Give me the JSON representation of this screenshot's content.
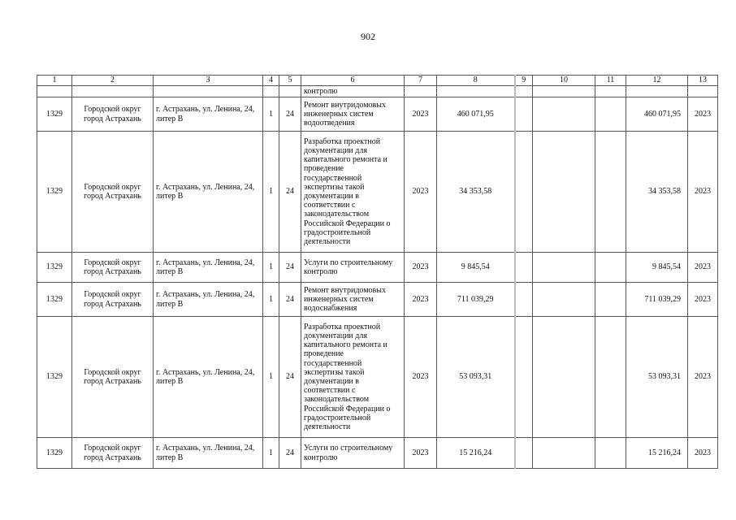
{
  "page_number": "902",
  "headers": [
    "1",
    "2",
    "3",
    "4",
    "5",
    "6",
    "7",
    "8",
    "9",
    "10",
    "11",
    "12",
    "13"
  ],
  "continuation": {
    "col6": "контролю"
  },
  "rows": [
    {
      "n": "1329",
      "municipality": "Городской округ город Астрахань",
      "address": "г. Астрахань, ул. Ленина, 24, литер В",
      "c4": "1",
      "c5": "24",
      "work": "Ремонт внутридомовых инженерных систем водоотведения",
      "year": "2023",
      "total": "460 071,95",
      "c9": "",
      "c10": "",
      "c11": "",
      "c12": "460 071,95",
      "c13": "2023"
    },
    {
      "n": "1329",
      "municipality": "Городской округ город Астрахань",
      "address": "г. Астрахань, ул. Ленина, 24, литер В",
      "c4": "1",
      "c5": "24",
      "work": "Разработка проектной документации для капитального ремонта и проведение государственной экспертизы такой документации в соответствии с законодательством Российской Федерации о градостроительной деятельности",
      "year": "2023",
      "total": "34 353,58",
      "c9": "",
      "c10": "",
      "c11": "",
      "c12": "34 353,58",
      "c13": "2023"
    },
    {
      "n": "1329",
      "municipality": "Городской округ город Астрахань",
      "address": "г. Астрахань, ул. Ленина, 24, литер В",
      "c4": "1",
      "c5": "24",
      "work": "Услуги по строительному контролю",
      "year": "2023",
      "total": "9 845,54",
      "c9": "",
      "c10": "",
      "c11": "",
      "c12": "9 845,54",
      "c13": "2023"
    },
    {
      "n": "1329",
      "municipality": "Городской округ город Астрахань",
      "address": "г. Астрахань, ул. Ленина, 24, литер В",
      "c4": "1",
      "c5": "24",
      "work": "Ремонт внутридомовых инженерных систем водоснабжения",
      "year": "2023",
      "total": "711 039,29",
      "c9": "",
      "c10": "",
      "c11": "",
      "c12": "711 039,29",
      "c13": "2023"
    },
    {
      "n": "1329",
      "municipality": "Городской округ город Астрахань",
      "address": "г. Астрахань, ул. Ленина, 24, литер В",
      "c4": "1",
      "c5": "24",
      "work": "Разработка проектной документации для капитального ремонта и проведение государственной экспертизы такой документации в соответствии с законодательством Российской Федерации о градостроительной деятельности",
      "year": "2023",
      "total": "53 093,31",
      "c9": "",
      "c10": "",
      "c11": "",
      "c12": "53 093,31",
      "c13": "2023"
    },
    {
      "n": "1329",
      "municipality": "Городской округ город Астрахань",
      "address": "г. Астрахань, ул. Ленина, 24, литер В",
      "c4": "1",
      "c5": "24",
      "work": "Услуги по строительному контролю",
      "year": "2023",
      "total": "15 216,24",
      "c9": "",
      "c10": "",
      "c11": "",
      "c12": "15 216,24",
      "c13": "2023"
    }
  ]
}
